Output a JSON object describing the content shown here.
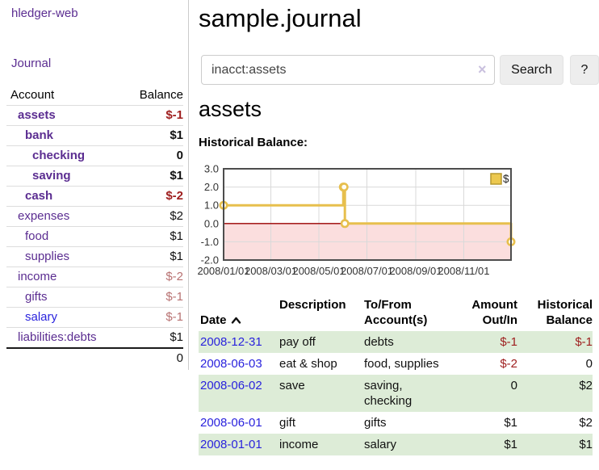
{
  "app": {
    "brand": "hledger-web",
    "nav": {
      "journal": "Journal"
    }
  },
  "sidebar": {
    "columns": {
      "account": "Account",
      "balance": "Balance"
    },
    "accounts": [
      {
        "name": "assets",
        "level": 0,
        "bold": true,
        "balance": "$-1",
        "balance_class": "neg",
        "name_class": "visited"
      },
      {
        "name": "bank",
        "level": 1,
        "bold": true,
        "balance": "$1",
        "balance_class": "",
        "name_class": "visited"
      },
      {
        "name": "checking",
        "level": 2,
        "bold": true,
        "balance": "0",
        "balance_class": "",
        "name_class": "visited"
      },
      {
        "name": "saving",
        "level": 2,
        "bold": true,
        "balance": "$1",
        "balance_class": "",
        "name_class": "visited"
      },
      {
        "name": "cash",
        "level": 1,
        "bold": true,
        "balance": "$-2",
        "balance_class": "neg",
        "name_class": "visited"
      },
      {
        "name": "expenses",
        "level": 0,
        "bold": false,
        "balance": "$2",
        "balance_class": "",
        "name_class": "visited"
      },
      {
        "name": "food",
        "level": 1,
        "bold": false,
        "balance": "$1",
        "balance_class": "",
        "name_class": "visited"
      },
      {
        "name": "supplies",
        "level": 1,
        "bold": false,
        "balance": "$1",
        "balance_class": "",
        "name_class": "visited"
      },
      {
        "name": "income",
        "level": 0,
        "bold": false,
        "balance": "$-2",
        "balance_class": "negfaint",
        "name_class": "visited"
      },
      {
        "name": "gifts",
        "level": 1,
        "bold": false,
        "balance": "$-1",
        "balance_class": "negfaint",
        "name_class": "visited"
      },
      {
        "name": "salary",
        "level": 1,
        "bold": false,
        "balance": "$-1",
        "balance_class": "negfaint",
        "name_class": "unvisited"
      },
      {
        "name": "liabilities:debts",
        "level": 0,
        "bold": false,
        "balance": "$1",
        "balance_class": "",
        "name_class": "visited"
      }
    ],
    "total": "0"
  },
  "main": {
    "title": "sample.journal",
    "search": {
      "value": "inacct:assets",
      "clear_icon": "×",
      "search_button": "Search",
      "help_button": "?"
    },
    "account_heading": "assets",
    "chart_heading": "Historical Balance:"
  },
  "chart_data": {
    "type": "line",
    "title": "Historical Balance",
    "step": "after",
    "ylim": [
      -2,
      3
    ],
    "yticks": [
      {
        "value": 3,
        "label": "3.0"
      },
      {
        "value": 2,
        "label": "2.0"
      },
      {
        "value": 1,
        "label": "1.0"
      },
      {
        "value": 0,
        "label": "0.0"
      },
      {
        "value": -1,
        "label": "-1.0"
      },
      {
        "value": -2,
        "label": "-2.0"
      }
    ],
    "xticks": [
      {
        "day": 0,
        "label": "2008/01/01"
      },
      {
        "day": 60,
        "label": "2008/03/01"
      },
      {
        "day": 121,
        "label": "2008/05/01"
      },
      {
        "day": 182,
        "label": "2008/07/01"
      },
      {
        "day": 244,
        "label": "2008/09/01"
      },
      {
        "day": 305,
        "label": "2008/11/01"
      }
    ],
    "x_range_days": 365,
    "series": [
      {
        "name": "$",
        "color": "#e7bf4d",
        "marker_fill": "#fffdf5",
        "points": [
          {
            "date": "2008-01-01",
            "day": 0,
            "value": 1
          },
          {
            "date": "2008-06-01",
            "day": 152,
            "value": 2
          },
          {
            "date": "2008-06-02",
            "day": 153,
            "value": 2
          },
          {
            "date": "2008-06-03",
            "day": 154,
            "value": 0
          },
          {
            "date": "2008-12-31",
            "day": 365,
            "value": -1
          }
        ]
      }
    ],
    "legend": [
      {
        "label": "$",
        "color": "#ecc84f"
      }
    ],
    "legend_position": "top-right",
    "grid": true,
    "negative_region_color": "#fbdede",
    "zero_line_color": "#990000"
  },
  "register": {
    "columns": [
      {
        "label": "Date",
        "align": "left",
        "sorted": "ascending"
      },
      {
        "label": "Description",
        "align": "left"
      },
      {
        "label": "To/From\nAccount(s)",
        "align": "left"
      },
      {
        "label": "Amount\nOut/In",
        "align": "right"
      },
      {
        "label": "Historical\nBalance",
        "align": "right"
      }
    ],
    "rows": [
      {
        "date": "2008-12-31",
        "description": "pay off",
        "accounts": "debts",
        "amount": "$-1",
        "amount_class": "neg",
        "balance": "$-1",
        "balance_class": "neg"
      },
      {
        "date": "2008-06-03",
        "description": "eat & shop",
        "accounts": "food, supplies",
        "amount": "$-2",
        "amount_class": "neg",
        "balance": "0",
        "balance_class": ""
      },
      {
        "date": "2008-06-02",
        "description": "save",
        "accounts": "saving,\nchecking",
        "amount": "0",
        "amount_class": "",
        "balance": "$2",
        "balance_class": ""
      },
      {
        "date": "2008-06-01",
        "description": "gift",
        "accounts": "gifts",
        "amount": "$1",
        "amount_class": "",
        "balance": "$2",
        "balance_class": ""
      },
      {
        "date": "2008-01-01",
        "description": "income",
        "accounts": "salary",
        "amount": "$1",
        "amount_class": "",
        "balance": "$1",
        "balance_class": ""
      }
    ]
  },
  "colors": {
    "link_visited": "#5b2d91",
    "link_unvisited": "#2a23dd",
    "negative": "#9e1e1e",
    "negative_faint": "#b87272",
    "row_highlight_green": "#ddecd7",
    "chart_line": "#e7bf4d"
  }
}
